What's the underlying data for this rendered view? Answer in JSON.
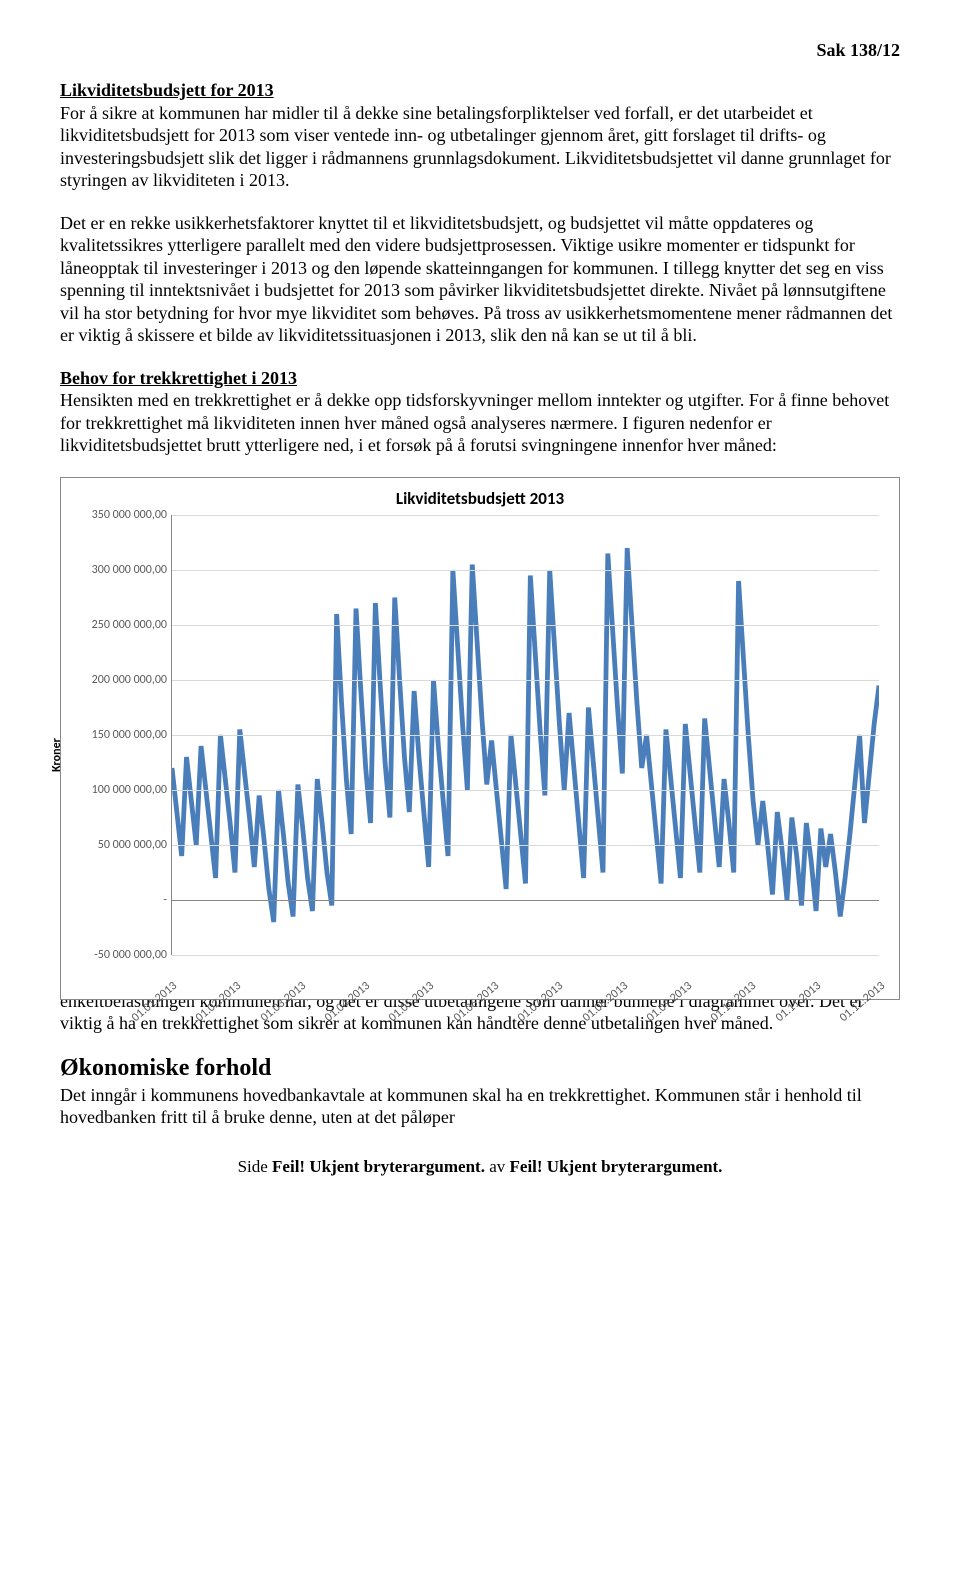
{
  "header": {
    "sak": "Sak 138/12"
  },
  "section1": {
    "title": "Likviditetsbudsjett for 2013",
    "para": "For å sikre at kommunen har midler til å dekke sine betalingsforpliktelser ved forfall, er det utarbeidet et likviditetsbudsjett for 2013 som viser ventede inn- og utbetalinger gjennom året, gitt forslaget til drifts- og investeringsbudsjett slik det ligger i rådmannens grunnlagsdokument. Likviditetsbudsjettet vil danne grunnlaget for styringen av likviditeten i 2013."
  },
  "para2": "Det er en rekke usikkerhetsfaktorer knyttet til et likviditetsbudsjett, og budsjettet vil måtte oppdateres og kvalitetssikres ytterligere parallelt med den videre budsjettprosessen. Viktige usikre momenter er tidspunkt for låneopptak til investeringer i 2013 og den løpende skatteinngangen for kommunen. I tillegg knytter det seg en viss spenning til inntektsnivået i budsjettet for 2013 som påvirker likviditetsbudsjettet direkte. Nivået på lønnsutgiftene vil ha stor betydning for hvor mye likviditet som behøves. På tross av usikkerhetsmomentene mener rådmannen det er viktig å skissere et bilde av likviditetssituasjonen i 2013, slik den nå kan se ut til å bli.",
  "section2": {
    "title": "Behov for trekkrettighet i 2013",
    "para": "Hensikten med en trekkrettighet er å dekke opp tidsforskyvninger mellom inntekter og utgifter. For å finne behovet for trekkrettighet må likviditeten innen hver måned også analyseres nærmere. I figuren nedenfor er likviditetsbudsjettet brutt ytterligere ned, i et forsøk på å forutsi svingningene innenfor hver måned:"
  },
  "chart": {
    "type": "line",
    "title": "Likviditetsbudsjett 2013",
    "y_label": "Kroner",
    "y_ticks": [
      "350 000 000,00",
      "300 000 000,00",
      "250 000 000,00",
      "200 000 000,00",
      "150 000 000,00",
      "100 000 000,00",
      "50 000 000,00",
      "-",
      "-50 000 000,00"
    ],
    "y_min": -50000000,
    "y_max": 350000000,
    "y_tick_values": [
      350000000,
      300000000,
      250000000,
      200000000,
      150000000,
      100000000,
      50000000,
      0,
      -50000000
    ],
    "x_ticks": [
      "01.01.2013",
      "01.02.2013",
      "01.03.2013",
      "01.04.2013",
      "01.05.2013",
      "01.06.2013",
      "01.07.2013",
      "01.08.2013",
      "01.09.2013",
      "01.10.2013",
      "01.11.2013",
      "01.12.2013"
    ],
    "grid_color": "#d9d9d9",
    "axis_color": "#888888",
    "line_color": "#4a7ebb",
    "line_width": 1.6,
    "background_color": "#ffffff",
    "series": [
      120,
      80,
      40,
      130,
      90,
      50,
      140,
      100,
      60,
      20,
      150,
      110,
      70,
      25,
      155,
      115,
      75,
      30,
      95,
      55,
      10,
      -20,
      100,
      60,
      15,
      -15,
      105,
      65,
      20,
      -10,
      110,
      70,
      25,
      -5,
      260,
      180,
      110,
      60,
      265,
      190,
      120,
      70,
      270,
      195,
      125,
      75,
      275,
      200,
      130,
      80,
      190,
      130,
      80,
      30,
      200,
      140,
      90,
      40,
      300,
      230,
      160,
      100,
      305,
      235,
      165,
      105,
      145,
      100,
      55,
      10,
      150,
      105,
      60,
      15,
      295,
      225,
      155,
      95,
      300,
      230,
      160,
      100,
      170,
      120,
      70,
      20,
      175,
      125,
      75,
      25,
      315,
      245,
      175,
      115,
      320,
      250,
      180,
      120,
      150,
      105,
      60,
      15,
      155,
      110,
      65,
      20,
      160,
      115,
      70,
      25,
      165,
      120,
      75,
      30,
      110,
      70,
      25,
      290,
      220,
      150,
      90,
      50,
      90,
      50,
      5,
      80,
      45,
      0,
      75,
      40,
      -5,
      70,
      35,
      -10,
      65,
      30,
      60,
      25,
      -15,
      20,
      60,
      105,
      150,
      70,
      115,
      160,
      195
    ]
  },
  "after_chart": "enkeltbelastningen kommunen har, og det er disse utbetalingene som danner bunnene i diagrammet over. Det er viktig å ha en trekkrettighet som sikrer at kommunen kan håndtere denne utbetalingen hver måned.",
  "econ": {
    "title": "Økonomiske forhold",
    "para": "Det inngår i kommunens hovedbankavtale at kommunen skal ha en trekkrettighet. Kommunen står i henhold til hovedbanken fritt til å bruke denne, uten at det påløper"
  },
  "footer": {
    "text_a": "Side ",
    "err": "Feil! Ukjent bryterargument.",
    "text_b": " av "
  }
}
